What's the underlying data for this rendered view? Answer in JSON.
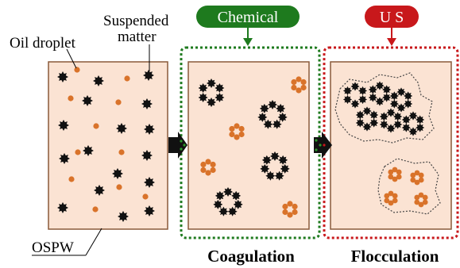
{
  "labels": {
    "oil_droplet": "Oil droplet",
    "suspended_line1": "Suspended",
    "suspended_line2": "matter",
    "ospw": "OSPW",
    "coagulation": "Coagulation",
    "flocculation": "Flocculation"
  },
  "badges": {
    "chemical": "Chemical",
    "us": "U S"
  },
  "colors": {
    "panel_fill": "#fbe3d3",
    "panel_border": "#8a5a3a",
    "droplet": "#d9732a",
    "matter": "#111111",
    "chemical": "#1e7a1e",
    "us": "#c8181b",
    "arrow": "#111111",
    "arrow_dots": "#2a9a2a"
  },
  "icons": {
    "droplet": "orange-dot-icon",
    "matter": "black-star-icon",
    "arrow": "block-arrow-icon"
  }
}
